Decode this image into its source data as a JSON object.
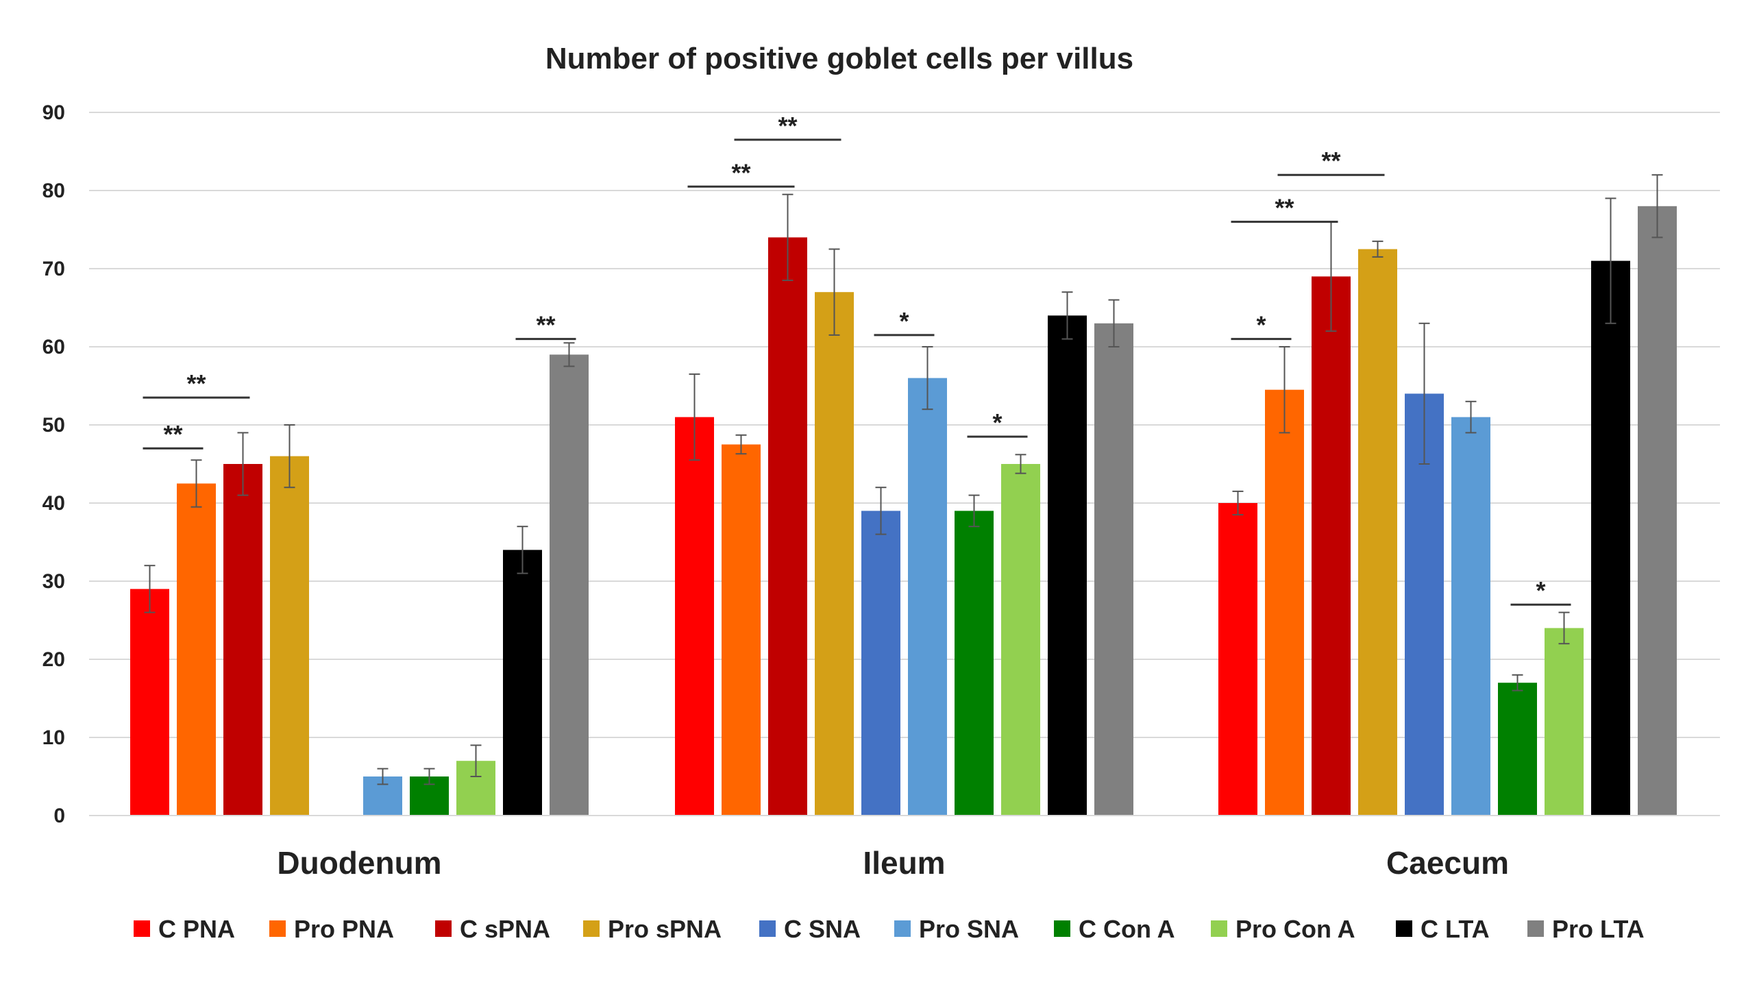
{
  "chart_data": {
    "type": "bar",
    "title": "Number of positive goblet cells per villus",
    "xlabel": "",
    "ylabel": "",
    "ylim": [
      0,
      90
    ],
    "yticks": [
      0,
      10,
      20,
      30,
      40,
      50,
      60,
      70,
      80,
      90
    ],
    "grid": true,
    "legend_position": "bottom",
    "categories": [
      "Duodenum",
      "Ileum",
      "Caecum"
    ],
    "series": [
      {
        "name": "C PNA",
        "color": "#ff0000",
        "values": [
          29,
          51,
          40
        ],
        "errors": [
          3,
          5.5,
          1.5
        ]
      },
      {
        "name": "Pro PNA",
        "color": "#ff6600",
        "values": [
          42.5,
          47.5,
          54.5
        ],
        "errors": [
          3,
          1.2,
          5.5
        ]
      },
      {
        "name": "C sPNA",
        "color": "#c00000",
        "values": [
          45,
          74,
          69
        ],
        "errors": [
          4,
          5.5,
          7
        ]
      },
      {
        "name": "Pro sPNA",
        "color": "#d4a017",
        "values": [
          46,
          67,
          72.5
        ],
        "errors": [
          4,
          5.5,
          1
        ]
      },
      {
        "name": "C SNA",
        "color": "#4472c4",
        "values": [
          null,
          39,
          54
        ],
        "errors": [
          0,
          3,
          9
        ]
      },
      {
        "name": "Pro SNA",
        "color": "#5b9bd5",
        "values": [
          5,
          56,
          51
        ],
        "errors": [
          1,
          4,
          2
        ]
      },
      {
        "name": "C Con A",
        "color": "#008000",
        "values": [
          5,
          39,
          17
        ],
        "errors": [
          1,
          2,
          1
        ]
      },
      {
        "name": "Pro Con A",
        "color": "#92d050",
        "values": [
          7,
          45,
          24
        ],
        "errors": [
          2,
          1.2,
          2
        ]
      },
      {
        "name": "C LTA",
        "color": "#000000",
        "values": [
          34,
          64,
          71
        ],
        "errors": [
          3,
          3,
          8
        ]
      },
      {
        "name": "Pro LTA",
        "color": "#808080",
        "values": [
          59,
          63,
          78
        ],
        "errors": [
          1.5,
          3,
          4
        ]
      }
    ],
    "significance": [
      {
        "category": 0,
        "from": 0,
        "to": 1,
        "label": "**",
        "y": 47
      },
      {
        "category": 0,
        "from": 0,
        "to": 2,
        "label": "**",
        "y": 53.5
      },
      {
        "category": 0,
        "from": 8,
        "to": 9,
        "label": "**",
        "y": 61
      },
      {
        "category": 1,
        "from": 0,
        "to": 2,
        "label": "**",
        "y": 80.5
      },
      {
        "category": 1,
        "from": 1,
        "to": 3,
        "label": "**",
        "y": 86.5
      },
      {
        "category": 1,
        "from": 4,
        "to": 5,
        "label": "*",
        "y": 61.5
      },
      {
        "category": 1,
        "from": 6,
        "to": 7,
        "label": "*",
        "y": 48.5
      },
      {
        "category": 2,
        "from": 0,
        "to": 1,
        "label": "*",
        "y": 61
      },
      {
        "category": 2,
        "from": 0,
        "to": 2,
        "label": "**",
        "y": 76
      },
      {
        "category": 2,
        "from": 1,
        "to": 3,
        "label": "**",
        "y": 82
      },
      {
        "category": 2,
        "from": 6,
        "to": 7,
        "label": "*",
        "y": 27
      }
    ]
  }
}
